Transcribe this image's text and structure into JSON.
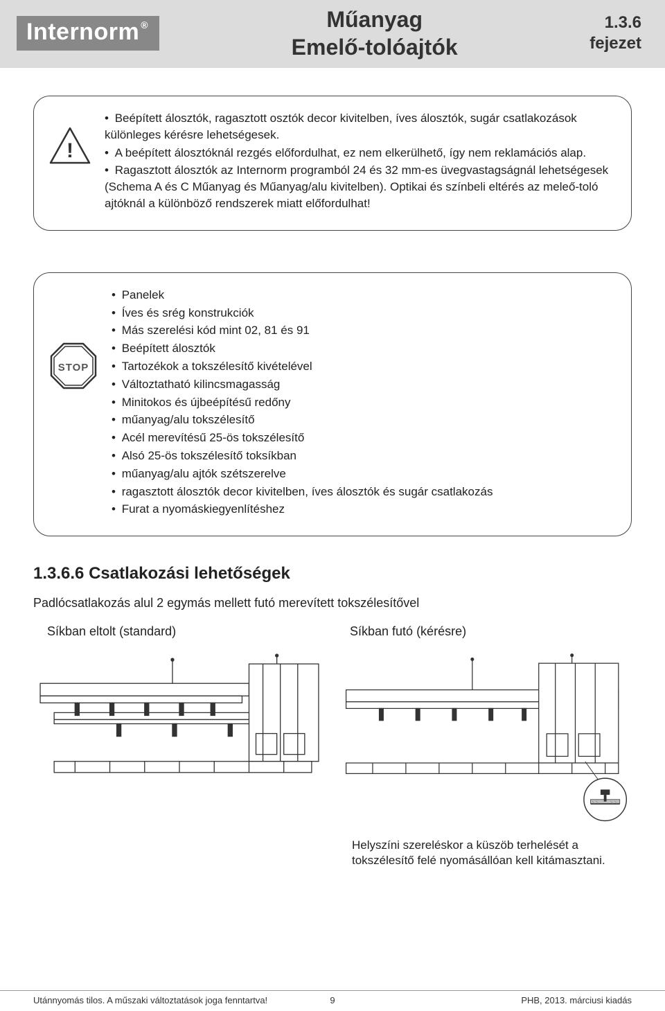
{
  "header": {
    "logo_text": "Internorm",
    "logo_reg": "®",
    "title_line1": "Műanyag",
    "title_line2": "Emelő-tolóajtók",
    "chapter_num": "1.3.6",
    "chapter_label": "fejezet",
    "bar_bg": "#dcdcdc",
    "logo_bg": "#888888",
    "logo_fg": "#ffffff"
  },
  "warning_box": {
    "icon_name": "warning-triangle-icon",
    "icon_label": "!",
    "items": [
      "Beépített álosztók, ragasztott osztók decor kivitelben, íves álosztók, sugár csatlakozások különleges kérésre lehetségesek.",
      "A beépített álosztóknál rezgés előfordulhat, ez nem elkerülhető, így nem reklamációs alap.",
      "Ragasztott álosztók az Internorm programból 24 és 32 mm-es üvegvastagságnál lehetségesek (Schema A és C Műanyag és Műanyag/alu kivitelben). Optikai és színbeli eltérés az meleő-toló ajtóknál a különböző rendszerek miatt előfordulhat!"
    ]
  },
  "stop_box": {
    "icon_name": "stop-sign-icon",
    "icon_label": "STOP",
    "items": [
      "Panelek",
      "Íves és srég konstrukciók",
      "Más szerelési kód mint 02, 81 és 91",
      "Beépített álosztók",
      "Tartozékok a tokszélesítő kivételével",
      "Változtatható kilincsmagasság",
      "Minitokos és újbeépítésű redőny",
      "műanyag/alu tokszélesítő",
      "Acél merevítésű 25-ös tokszélesítő",
      "Alsó 25-ös tokszélesítő toksíkban",
      "műanyag/alu ajtók szétszerelve",
      "ragasztott álosztók decor kivitelben, íves álosztók és sugár csatlakozás",
      "Furat a nyomáskiegyenlítéshez"
    ]
  },
  "section": {
    "heading": "1.3.6.6 Csatlakozási lehetőségek",
    "subtext": "Padlócsatlakozás alul 2 egymás mellett futó merevített tokszélesítővel",
    "option_a": "Síkban eltolt (standard)",
    "option_b": "Síkban futó (kérésre)",
    "note": "Helyszíni szereléskor a küszöb terhelését a tokszélesítő felé nyomásállóan kell kitámasztani."
  },
  "drawings": {
    "stroke": "#333333",
    "fill": "#ffffff",
    "hatch": "#bfbfbf",
    "detail_circle": true
  },
  "footer": {
    "left": "Utánnyomás tilos. A műszaki változtatások joga fenntartva!",
    "right": "PHB, 2013. márciusi kiadás",
    "page_number": "9"
  }
}
